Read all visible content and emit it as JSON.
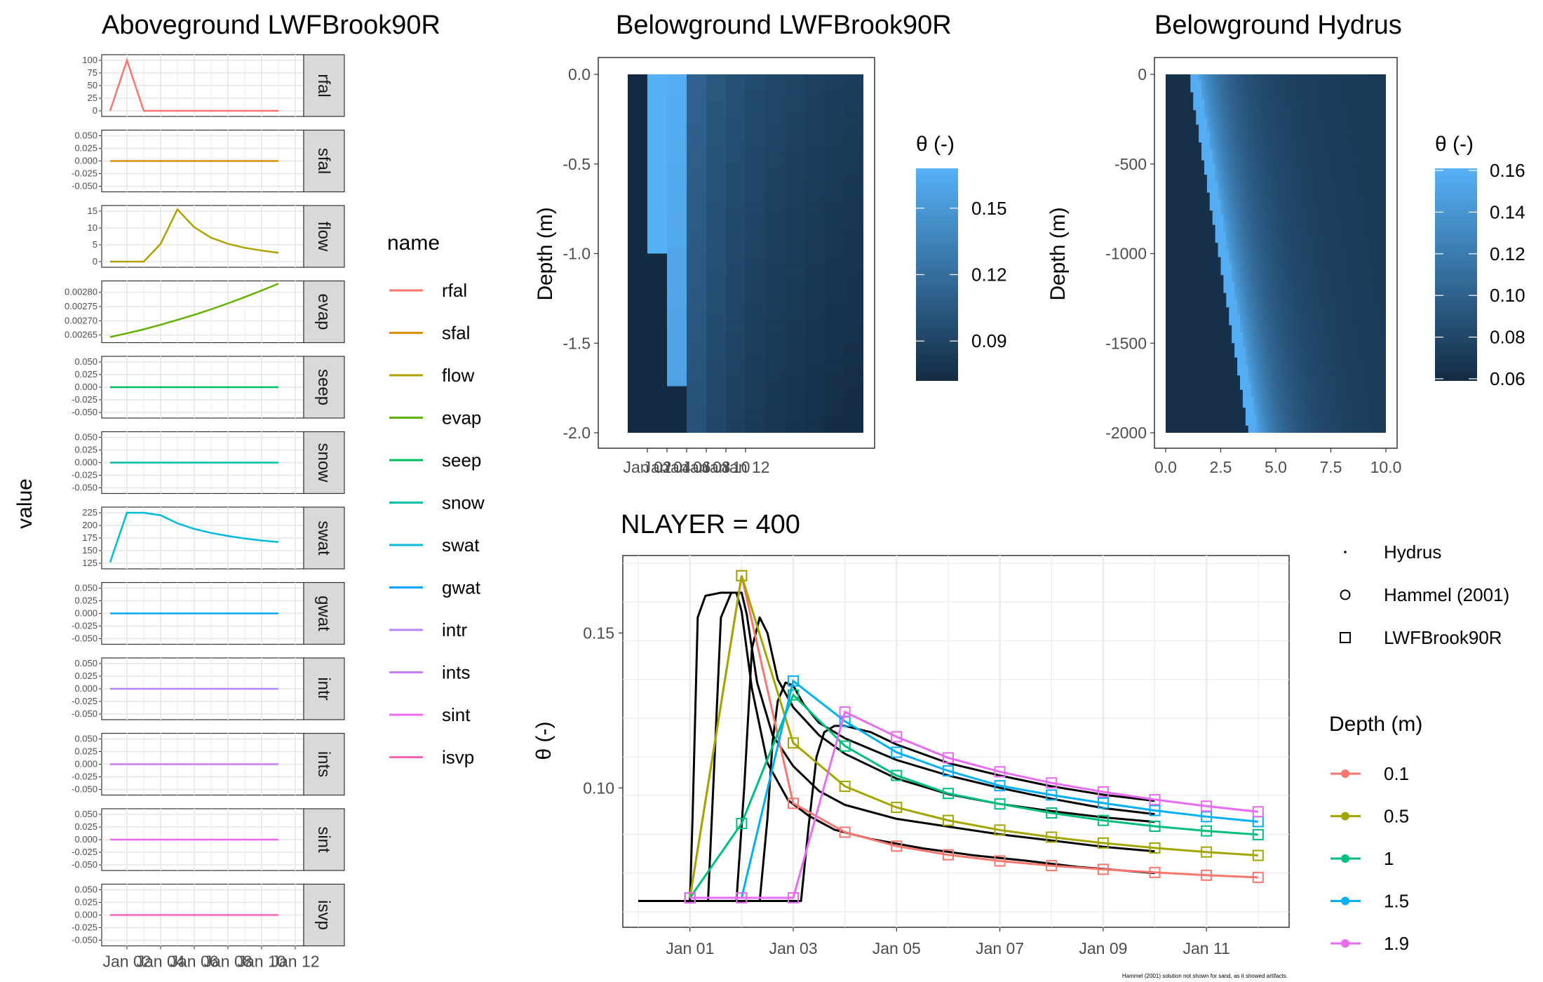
{
  "chart_data": [
    {
      "id": "aboveground",
      "type": "line",
      "title": "Aboveground LWFBrook90R",
      "ylabel": "value",
      "legend_title": "name",
      "x_ticks": [
        "Jan 02",
        "Jan 04",
        "Jan 06",
        "Jan 08",
        "Jan 10",
        "Jan 12"
      ],
      "panels": [
        {
          "name": "rfal",
          "color": "#F8766D",
          "ylim": [
            0,
            100
          ],
          "ticks": [
            "0",
            "25",
            "50",
            "75",
            "100"
          ],
          "tick_values": [
            0,
            25,
            50,
            75,
            100
          ],
          "values": [
            0,
            100,
            0,
            0,
            0,
            0,
            0,
            0,
            0,
            0,
            0
          ]
        },
        {
          "name": "sfal",
          "color": "#DB8E00",
          "ylim": [
            -0.05,
            0.05
          ],
          "ticks": [
            "-0.050",
            "-0.025",
            "0.000",
            "0.025",
            "0.050"
          ],
          "tick_values": [
            -0.05,
            -0.025,
            0,
            0.025,
            0.05
          ],
          "values": [
            0,
            0,
            0,
            0,
            0,
            0,
            0,
            0,
            0,
            0,
            0
          ]
        },
        {
          "name": "flow",
          "color": "#AEA200",
          "ylim": [
            0,
            15
          ],
          "ticks": [
            "0",
            "5",
            "10",
            "15"
          ],
          "tick_values": [
            0,
            5,
            10,
            15
          ],
          "values": [
            0,
            0,
            0,
            5.3,
            15.5,
            10.2,
            7.1,
            5.3,
            4.1,
            3.3,
            2.6
          ]
        },
        {
          "name": "evap",
          "color": "#64B200",
          "ylim": [
            0.002643,
            0.00282
          ],
          "ticks": [
            "0.00265",
            "0.00270",
            "0.00275",
            "0.00280"
          ],
          "tick_values": [
            0.00265,
            0.0027,
            0.00275,
            0.0028
          ],
          "values": [
            0.002643,
            0.002656,
            0.00267,
            0.002686,
            0.002703,
            0.002721,
            0.00274,
            0.002761,
            0.002783,
            0.002806,
            0.00283
          ]
        },
        {
          "name": "seep",
          "color": "#00BD5C",
          "ylim": [
            -0.05,
            0.05
          ],
          "ticks": [
            "-0.050",
            "-0.025",
            "0.000",
            "0.025",
            "0.050"
          ],
          "tick_values": [
            -0.05,
            -0.025,
            0,
            0.025,
            0.05
          ],
          "values": [
            0,
            0,
            0,
            0,
            0,
            0,
            0,
            0,
            0,
            0,
            0
          ]
        },
        {
          "name": "snow",
          "color": "#00C1A7",
          "ylim": [
            -0.05,
            0.05
          ],
          "ticks": [
            "-0.050",
            "-0.025",
            "0.000",
            "0.025",
            "0.050"
          ],
          "tick_values": [
            -0.05,
            -0.025,
            0,
            0.025,
            0.05
          ],
          "values": [
            0,
            0,
            0,
            0,
            0,
            0,
            0,
            0,
            0,
            0,
            0
          ]
        },
        {
          "name": "swat",
          "color": "#00BADE",
          "ylim": [
            125,
            225
          ],
          "ticks": [
            "125",
            "150",
            "175",
            "200",
            "225"
          ],
          "tick_values": [
            125,
            150,
            175,
            200,
            225
          ],
          "values": [
            127,
            225,
            225,
            220,
            204,
            193,
            185,
            179,
            174,
            170,
            167
          ]
        },
        {
          "name": "gwat",
          "color": "#00A6FF",
          "ylim": [
            -0.05,
            0.05
          ],
          "ticks": [
            "-0.050",
            "-0.025",
            "0.000",
            "0.025",
            "0.050"
          ],
          "tick_values": [
            -0.05,
            -0.025,
            0,
            0.025,
            0.05
          ],
          "values": [
            0,
            0,
            0,
            0,
            0,
            0,
            0,
            0,
            0,
            0,
            0
          ]
        },
        {
          "name": "intr",
          "color": "#B385FF",
          "ylim": [
            -0.05,
            0.05
          ],
          "ticks": [
            "-0.050",
            "-0.025",
            "0.000",
            "0.025",
            "0.050"
          ],
          "tick_values": [
            -0.05,
            -0.025,
            0,
            0.025,
            0.05
          ],
          "values": [
            0,
            0,
            0,
            0,
            0,
            0,
            0,
            0,
            0,
            0,
            0
          ]
        },
        {
          "name": "ints",
          "color": "#C77CFF",
          "ylim": [
            -0.05,
            0.05
          ],
          "ticks": [
            "-0.050",
            "-0.025",
            "0.000",
            "0.025",
            "0.050"
          ],
          "tick_values": [
            -0.05,
            -0.025,
            0,
            0.025,
            0.05
          ],
          "values": [
            0,
            0,
            0,
            0,
            0,
            0,
            0,
            0,
            0,
            0,
            0
          ]
        },
        {
          "name": "sint",
          "color": "#EF67EB",
          "ylim": [
            -0.05,
            0.05
          ],
          "ticks": [
            "-0.050",
            "-0.025",
            "0.000",
            "0.025",
            "0.050"
          ],
          "tick_values": [
            -0.05,
            -0.025,
            0,
            0.025,
            0.05
          ],
          "values": [
            0,
            0,
            0,
            0,
            0,
            0,
            0,
            0,
            0,
            0,
            0
          ]
        },
        {
          "name": "isvp",
          "color": "#FF63B6",
          "ylim": [
            -0.05,
            0.05
          ],
          "ticks": [
            "-0.050",
            "-0.025",
            "0.000",
            "0.025",
            "0.050"
          ],
          "tick_values": [
            -0.05,
            -0.025,
            0,
            0.025,
            0.05
          ],
          "values": [
            0,
            0,
            0,
            0,
            0,
            0,
            0,
            0,
            0,
            0,
            0
          ]
        }
      ]
    },
    {
      "id": "belowground_lwf",
      "type": "heatmap",
      "title": "Belowground LWFBrook90R",
      "ylabel": "Depth (m)",
      "x_ticks": [
        "Jan 02",
        "Jan 04",
        "Jan 06",
        "Jan 08",
        "Jan 10",
        "Jan 12"
      ],
      "y_ticks": [
        "0.0",
        "-0.5",
        "-1.0",
        "-1.5",
        "-2.0"
      ],
      "ylim": [
        -2.0,
        0.0
      ],
      "legend_title": "θ (-)",
      "legend_ticks": [
        "0.15",
        "0.12",
        "0.09"
      ],
      "colors": [
        "#132B43",
        "#56B1F7"
      ]
    },
    {
      "id": "belowground_hydrus",
      "type": "heatmap",
      "title": "Belowground Hydrus",
      "ylabel": "Depth (m)",
      "x_ticks": [
        "0.0",
        "2.5",
        "5.0",
        "7.5",
        "10.0"
      ],
      "xlim": [
        0,
        10
      ],
      "y_ticks": [
        "0",
        "-500",
        "-1000",
        "-1500",
        "-2000"
      ],
      "ylim": [
        -2000,
        0
      ],
      "legend_title": "θ (-)",
      "legend_ticks": [
        "0.16",
        "0.14",
        "0.12",
        "0.10",
        "0.08",
        "0.06"
      ],
      "colors": [
        "#132B43",
        "#56B1F7"
      ]
    },
    {
      "id": "nlayer",
      "type": "line",
      "title": "NLAYER = 400",
      "ylabel": "θ (-)",
      "x_ticks": [
        "Jan 01",
        "Jan 03",
        "Jan 05",
        "Jan 07",
        "Jan 09",
        "Jan 11"
      ],
      "x_tick_days": [
        1,
        3,
        5,
        7,
        9,
        11
      ],
      "xlim": [
        -0.3,
        12.6
      ],
      "y_ticks": [
        "0.10",
        "0.15"
      ],
      "y_tick_values": [
        0.1,
        0.15
      ],
      "ylim": [
        0.055,
        0.175
      ],
      "shape_legend": [
        "Hydrus",
        "Hammel (2001)",
        "LWFBrook90R"
      ],
      "depth_legend_title": "Depth (m)",
      "series": [
        {
          "name": "0.1",
          "color": "#F8766D",
          "x": [
            1,
            2,
            3,
            4,
            5,
            6,
            7,
            8,
            9,
            10,
            11,
            12
          ],
          "y": [
            0.0645,
            0.1685,
            0.095,
            0.0857,
            0.0812,
            0.0784,
            0.0764,
            0.0749,
            0.0737,
            0.0727,
            0.0718,
            0.0711
          ]
        },
        {
          "name": "0.5",
          "color": "#A3A500",
          "x": [
            1,
            2,
            3,
            4,
            5,
            6,
            7,
            8,
            9,
            10,
            11,
            12
          ],
          "y": [
            0.0645,
            0.1685,
            0.1145,
            0.1005,
            0.0937,
            0.0895,
            0.0864,
            0.0841,
            0.0822,
            0.0806,
            0.0793,
            0.0782
          ]
        },
        {
          "name": "1",
          "color": "#00BF7D",
          "x": [
            1,
            2,
            3,
            4,
            5,
            6,
            7,
            8,
            9,
            10,
            11,
            12
          ],
          "y": [
            0.0645,
            0.0885,
            0.13,
            0.1135,
            0.104,
            0.0982,
            0.0948,
            0.0919,
            0.0895,
            0.0876,
            0.0861,
            0.0849
          ]
        },
        {
          "name": "1.5",
          "color": "#00B0F6",
          "x": [
            1,
            2,
            3,
            4,
            5,
            6,
            7,
            8,
            9,
            10,
            11,
            12
          ],
          "y": [
            0.0645,
            0.0645,
            0.1345,
            0.1215,
            0.1115,
            0.1055,
            0.1007,
            0.0977,
            0.0951,
            0.0927,
            0.0907,
            0.0891
          ]
        },
        {
          "name": "1.9",
          "color": "#E76BF3",
          "x": [
            1,
            2,
            3,
            4,
            5,
            6,
            7,
            8,
            9,
            10,
            11,
            12
          ],
          "y": [
            0.0645,
            0.0645,
            0.0645,
            0.1245,
            0.1165,
            0.1097,
            0.1052,
            0.1016,
            0.0987,
            0.0962,
            0.0941,
            0.0923
          ]
        }
      ],
      "hydrus": [
        {
          "x": [
            0,
            1.0,
            1.05,
            1.15,
            1.3,
            1.6,
            1.9,
            2.0,
            2.2,
            2.5,
            2.9,
            3.3,
            3.8,
            4.5,
            5.5,
            6.5,
            7.5,
            8.5,
            10.0
          ],
          "y": [
            0.0635,
            0.0635,
            0.09,
            0.155,
            0.162,
            0.163,
            0.163,
            0.157,
            0.132,
            0.108,
            0.096,
            0.091,
            0.0865,
            0.0835,
            0.0805,
            0.0782,
            0.0765,
            0.0745,
            0.0725
          ]
        },
        {
          "x": [
            0,
            1.35,
            1.45,
            1.6,
            1.8,
            2.0,
            2.1,
            2.3,
            2.6,
            3.0,
            3.5,
            4.0,
            5.0,
            6.0,
            7.0,
            8.0,
            9.0,
            10.0
          ],
          "y": [
            0.0635,
            0.0635,
            0.1,
            0.155,
            0.163,
            0.163,
            0.156,
            0.134,
            0.117,
            0.107,
            0.099,
            0.0945,
            0.09,
            0.0875,
            0.085,
            0.083,
            0.081,
            0.0795
          ]
        },
        {
          "x": [
            0,
            1.9,
            2.05,
            2.2,
            2.35,
            2.5,
            2.7,
            3.0,
            3.5,
            4.0,
            5.0,
            6.0,
            7.0,
            8.0,
            9.0,
            10.0
          ],
          "y": [
            0.0635,
            0.0635,
            0.1,
            0.145,
            0.155,
            0.15,
            0.135,
            0.126,
            0.117,
            0.111,
            0.103,
            0.098,
            0.0948,
            0.0925,
            0.0905,
            0.089
          ]
        },
        {
          "x": [
            0,
            2.35,
            2.5,
            2.6,
            2.7,
            2.85,
            3.0,
            3.2,
            3.5,
            4.0,
            5.0,
            6.0,
            7.0,
            8.0,
            9.0,
            10.0
          ],
          "y": [
            0.0635,
            0.0635,
            0.09,
            0.115,
            0.128,
            0.134,
            0.133,
            0.127,
            0.121,
            0.116,
            0.109,
            0.104,
            0.1,
            0.0965,
            0.0935,
            0.0915
          ]
        },
        {
          "x": [
            0,
            3.15,
            3.3,
            3.45,
            3.6,
            3.8,
            4.0,
            4.5,
            5.0,
            6.0,
            7.0,
            8.0,
            9.0,
            10.0
          ],
          "y": [
            0.0635,
            0.0635,
            0.088,
            0.11,
            0.118,
            0.12,
            0.12,
            0.118,
            0.114,
            0.108,
            0.104,
            0.1005,
            0.0978,
            0.0958
          ]
        }
      ],
      "footnote": "Hammel (2001) solution not shown for sand, as it showed artifacts."
    }
  ]
}
